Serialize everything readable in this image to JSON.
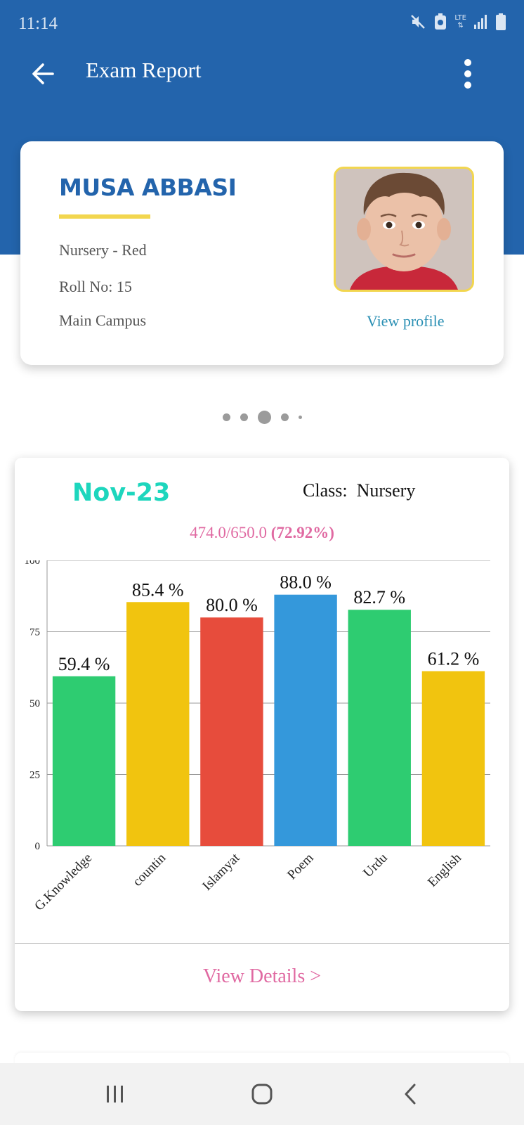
{
  "status_bar": {
    "time": "11:14",
    "network_label": "LTE"
  },
  "app_bar": {
    "title": "Exam Report"
  },
  "student": {
    "name": "MUSA ABBASI",
    "class_section": "Nursery - Red",
    "roll_no": "Roll No: 15",
    "campus": "Main Campus",
    "view_profile_label": "View profile"
  },
  "pager": {
    "count": 5,
    "active_index": 2
  },
  "exam": {
    "month": "Nov-23",
    "class_prefix": "Class:",
    "class_name": "Nursery",
    "score": "474.0/650.0",
    "score_percent": "(72.92%)",
    "view_details_label": "View Details >"
  },
  "chart_data": {
    "type": "bar",
    "categories": [
      "G.Knowledge",
      "countin",
      "Islamyat",
      "Poem",
      "Urdu",
      "English"
    ],
    "values": [
      59.4,
      85.4,
      80.0,
      88.0,
      82.7,
      61.2
    ],
    "value_labels": [
      "59.4 %",
      "85.4 %",
      "80.0 %",
      "88.0 %",
      "82.7 %",
      "61.2 %"
    ],
    "colors": [
      "#2ecc71",
      "#f1c40f",
      "#e74c3c",
      "#3498db",
      "#2ecc71",
      "#f1c40f"
    ],
    "ylim": [
      0,
      100
    ],
    "yticks": [
      0,
      25,
      50,
      75,
      100
    ],
    "grid": true
  },
  "colors": {
    "primary": "#2364ac",
    "accent_yellow": "#f2d64f",
    "month_teal": "#1dd6bd",
    "pink": "#e06aa2",
    "link_blue": "#2b90b4"
  },
  "icons": {
    "back": "arrow-left-icon",
    "more": "more-vertical-icon",
    "nav_recents": "recents-icon",
    "nav_home": "home-icon",
    "nav_back": "nav-back-icon"
  }
}
